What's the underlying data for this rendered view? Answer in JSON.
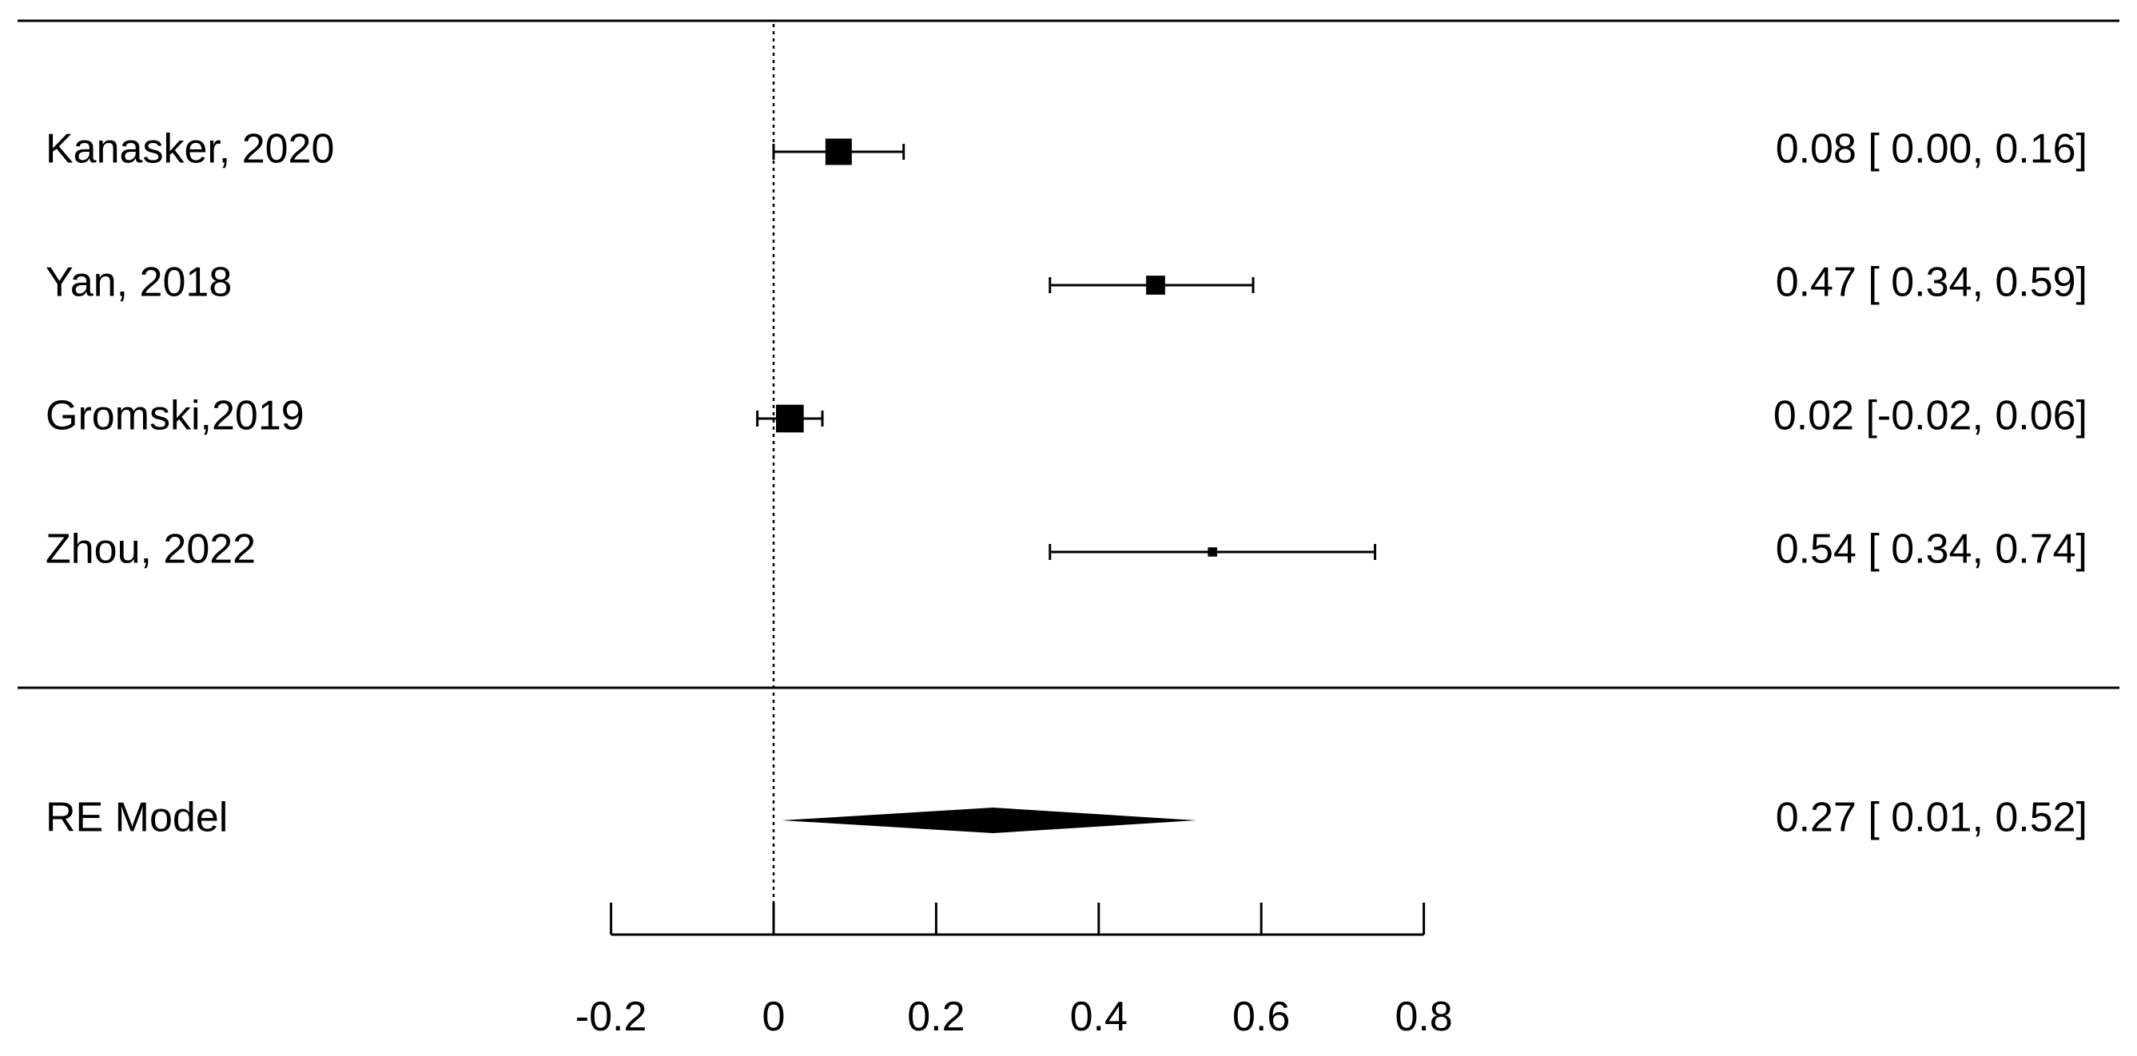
{
  "chart_data": {
    "type": "forest",
    "title": "",
    "xlabel": "",
    "ylabel": "",
    "xlim": [
      -0.2,
      0.8
    ],
    "x_ticks": [
      -0.2,
      0,
      0.2,
      0.4,
      0.6,
      0.8
    ],
    "x_tick_labels": [
      "-0.2",
      "0",
      "0.2",
      "0.4",
      "0.6",
      "0.8"
    ],
    "reference_line": 0,
    "grid": false,
    "legend": "none",
    "studies": [
      {
        "label": "Kanasker, 2020",
        "estimate": 0.08,
        "ci_lower": 0.0,
        "ci_upper": 0.16,
        "ci_text": "0.08 [ 0.00, 0.16]",
        "relative_weight": 1.0
      },
      {
        "label": "Yan, 2018",
        "estimate": 0.47,
        "ci_lower": 0.34,
        "ci_upper": 0.59,
        "ci_text": "0.47 [ 0.34, 0.59]",
        "relative_weight": 0.72
      },
      {
        "label": "Gromski,2019",
        "estimate": 0.02,
        "ci_lower": -0.02,
        "ci_upper": 0.06,
        "ci_text": "0.02 [-0.02, 0.06]",
        "relative_weight": 1.05
      },
      {
        "label": "Zhou, 2022",
        "estimate": 0.54,
        "ci_lower": 0.34,
        "ci_upper": 0.74,
        "ci_text": "0.54 [ 0.34, 0.74]",
        "relative_weight": 0.35
      }
    ],
    "summary": {
      "label": "RE Model",
      "estimate": 0.27,
      "ci_lower": 0.01,
      "ci_upper": 0.52,
      "ci_text": "0.27 [ 0.01, 0.52]"
    }
  }
}
